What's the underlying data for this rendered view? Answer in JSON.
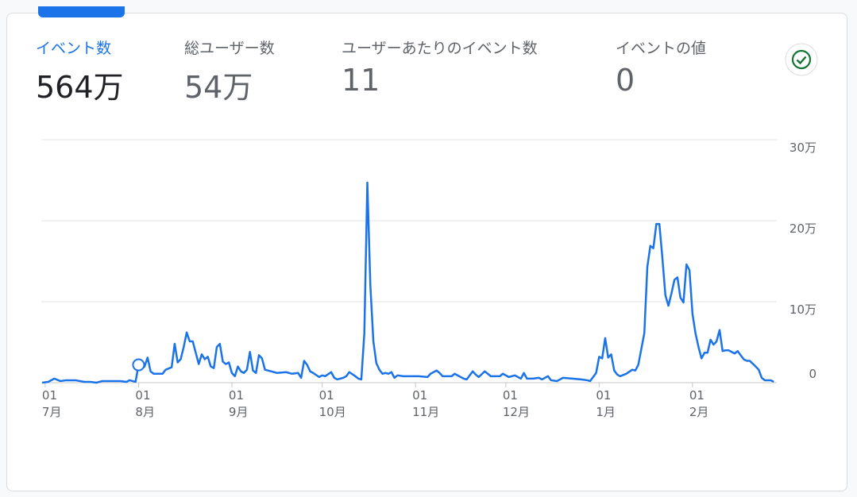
{
  "metrics": [
    {
      "label": "イベント数",
      "value": "564万"
    },
    {
      "label": "総ユーザー数",
      "value": "54万"
    },
    {
      "label": "ユーザーあたりのイベント数",
      "value": "11"
    },
    {
      "label": "イベントの値",
      "value": "0"
    }
  ],
  "selected_metric": 0,
  "chart_data": {
    "type": "line",
    "x": [
      -1,
      1,
      3,
      5,
      7,
      10,
      13,
      15,
      17,
      19,
      25,
      27,
      28,
      30,
      31,
      32,
      33,
      34,
      35,
      36,
      39,
      40,
      42,
      43,
      44,
      45,
      46,
      47,
      48,
      49,
      50,
      51,
      52,
      53,
      54,
      55,
      56,
      57,
      58,
      59,
      60,
      61,
      62,
      63,
      64,
      65,
      66,
      67,
      68,
      69,
      70,
      71,
      72,
      73,
      75,
      77,
      80,
      82,
      84,
      85,
      86,
      87,
      88,
      89,
      91,
      92,
      93,
      95,
      96,
      97,
      99,
      100,
      101,
      103,
      104,
      105,
      106,
      107,
      108,
      109,
      110,
      111,
      112,
      113,
      114,
      115,
      116,
      117,
      119,
      121,
      124,
      127,
      128,
      130,
      131,
      132,
      135,
      136,
      138,
      139,
      140,
      142,
      143,
      144,
      146,
      147,
      148,
      151,
      152,
      154,
      156,
      158,
      159,
      160,
      162,
      164,
      165,
      167,
      168,
      170,
      172,
      175,
      178,
      180,
      181,
      183,
      184,
      185,
      186,
      187,
      188,
      189,
      190,
      191,
      193,
      195,
      196,
      197,
      199,
      200,
      201,
      202,
      203,
      204,
      205,
      206,
      207,
      208,
      209,
      210,
      211,
      212,
      213,
      214,
      215,
      216,
      217,
      218,
      219,
      220,
      221,
      222,
      223,
      224,
      225,
      226,
      227,
      228,
      229,
      230,
      231,
      232,
      233,
      234,
      236,
      237,
      238,
      239,
      241,
      242
    ],
    "series": [
      {
        "name": "イベント数",
        "color": "#1a73e8",
        "values": [
          0,
          1000,
          5000,
          2000,
          3000,
          3000,
          1000,
          1000,
          0,
          2000,
          2000,
          1000,
          3000,
          1000,
          22000,
          17000,
          20000,
          31000,
          14000,
          11000,
          11000,
          16000,
          19000,
          48000,
          25000,
          29000,
          44000,
          62000,
          51000,
          51000,
          37000,
          23000,
          35000,
          29000,
          32000,
          20000,
          18000,
          44000,
          48000,
          26000,
          23000,
          25000,
          12000,
          8000,
          20000,
          14000,
          12000,
          16000,
          38000,
          15000,
          12000,
          34000,
          30000,
          16000,
          14000,
          12000,
          13000,
          11000,
          12000,
          6000,
          27000,
          22000,
          14000,
          12000,
          7000,
          9000,
          8000,
          13000,
          6000,
          4000,
          6000,
          8000,
          13000,
          8000,
          5000,
          4000,
          61000,
          247000,
          120000,
          51000,
          24000,
          16000,
          11000,
          12000,
          11000,
          13000,
          6000,
          9000,
          8000,
          8000,
          8000,
          7000,
          11000,
          15000,
          12000,
          8000,
          8000,
          11000,
          7000,
          5000,
          4000,
          14000,
          10000,
          7000,
          14000,
          11000,
          8000,
          8000,
          11000,
          7000,
          9000,
          5000,
          12000,
          5000,
          5000,
          6000,
          4000,
          8000,
          3000,
          2000,
          6000,
          5000,
          4000,
          3000,
          2000,
          12000,
          32000,
          30000,
          55000,
          31000,
          35000,
          15000,
          10000,
          8000,
          11000,
          16000,
          15000,
          22000,
          61000,
          143000,
          169000,
          166000,
          196000,
          196000,
          154000,
          108000,
          95000,
          110000,
          127000,
          130000,
          105000,
          99000,
          146000,
          139000,
          85000,
          61000,
          44000,
          30000,
          37000,
          37000,
          53000,
          47000,
          51000,
          65000,
          39000,
          40000,
          40000,
          38000,
          36000,
          39000,
          34000,
          29000,
          27000,
          27000,
          20000,
          16000,
          6000,
          3000,
          3000,
          1000
        ]
      }
    ],
    "highlight_x": 31,
    "xlim": [
      -1.3,
      243
    ],
    "xticks": [
      {
        "value": 0,
        "label": "01"
      },
      {
        "value": 31,
        "label": "01"
      },
      {
        "value": 62,
        "label": "01"
      },
      {
        "value": 92,
        "label": "01"
      },
      {
        "value": 123,
        "label": "01"
      },
      {
        "value": 153,
        "label": "01"
      },
      {
        "value": 184,
        "label": "01"
      },
      {
        "value": 215,
        "label": "01"
      }
    ],
    "xtick_months": [
      "7月",
      "8月",
      "9月",
      "10月",
      "11月",
      "12月",
      "1月",
      "2月"
    ],
    "ylim": [
      0,
      300000
    ],
    "yticks": [
      0,
      {
        "value": 100000,
        "label": "10万"
      },
      {
        "value": 200000,
        "label": "20万"
      },
      {
        "value": 300000,
        "label": "30万"
      }
    ],
    "grid": true
  }
}
